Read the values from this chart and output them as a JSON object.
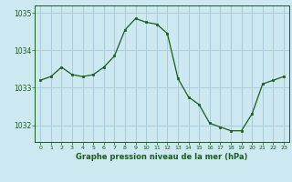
{
  "x": [
    0,
    1,
    2,
    3,
    4,
    5,
    6,
    7,
    8,
    9,
    10,
    11,
    12,
    13,
    14,
    15,
    16,
    17,
    18,
    19,
    20,
    21,
    22,
    23
  ],
  "y": [
    1033.2,
    1033.3,
    1033.55,
    1033.35,
    1033.3,
    1033.35,
    1033.55,
    1033.85,
    1034.55,
    1034.85,
    1034.75,
    1034.7,
    1034.45,
    1033.25,
    1032.75,
    1032.55,
    1032.05,
    1031.95,
    1031.85,
    1031.85,
    1032.3,
    1033.1,
    1033.2,
    1033.3
  ],
  "line_color": "#1a5c1a",
  "marker_color": "#1a5c1a",
  "bg_color": "#cce8f0",
  "grid_color": "#aaccd8",
  "label_color": "#1a5c1a",
  "tick_color": "#1a5c1a",
  "xlabel": "Graphe pression niveau de la mer (hPa)",
  "yticks": [
    1032,
    1033,
    1034,
    1035
  ],
  "xticks": [
    0,
    1,
    2,
    3,
    4,
    5,
    6,
    7,
    8,
    9,
    10,
    11,
    12,
    13,
    14,
    15,
    16,
    17,
    18,
    19,
    20,
    21,
    22,
    23
  ],
  "ylim": [
    1031.55,
    1035.2
  ],
  "xlim": [
    -0.5,
    23.5
  ]
}
